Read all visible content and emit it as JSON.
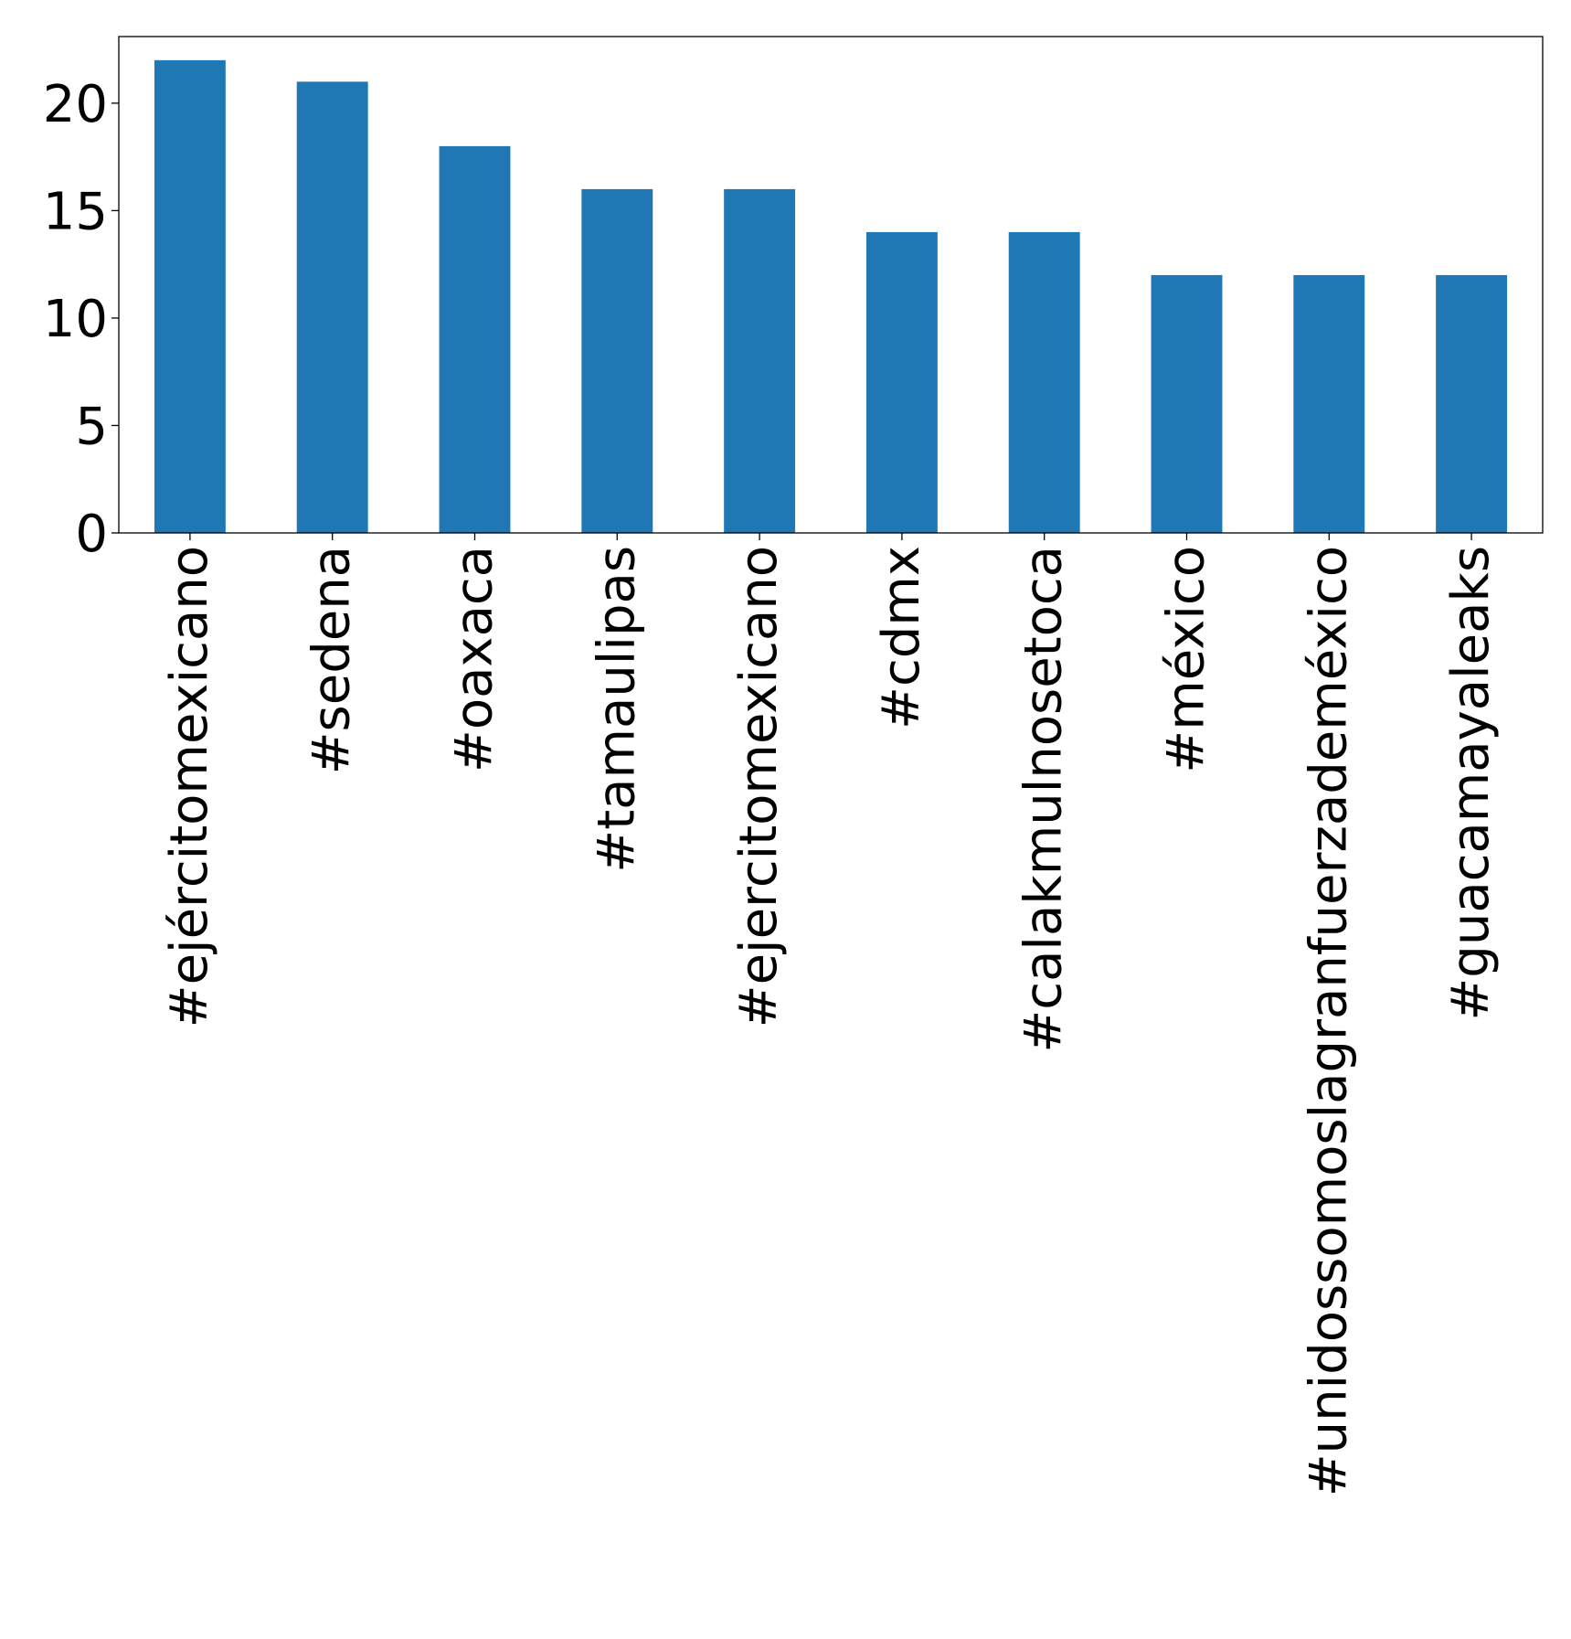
{
  "chart_data": {
    "type": "bar",
    "title": "",
    "xlabel": "",
    "ylabel": "",
    "categories": [
      "#ejércitomexicano",
      "#sedena",
      "#oaxaca",
      "#tamaulipas",
      "#ejercitomexicano",
      "#cdmx",
      "#calakmulnosetoca",
      "#méxico",
      "#unidossomoslagranfuerzademéxico",
      "#guacamayaleaks"
    ],
    "values": [
      22,
      21,
      18,
      16,
      16,
      14,
      14,
      12,
      12,
      12
    ],
    "ylim": [
      0,
      23.1
    ],
    "yticks": [
      0,
      5,
      10,
      15,
      20
    ],
    "bar_color": "#1f77b4",
    "grid": false,
    "legend": "none"
  }
}
